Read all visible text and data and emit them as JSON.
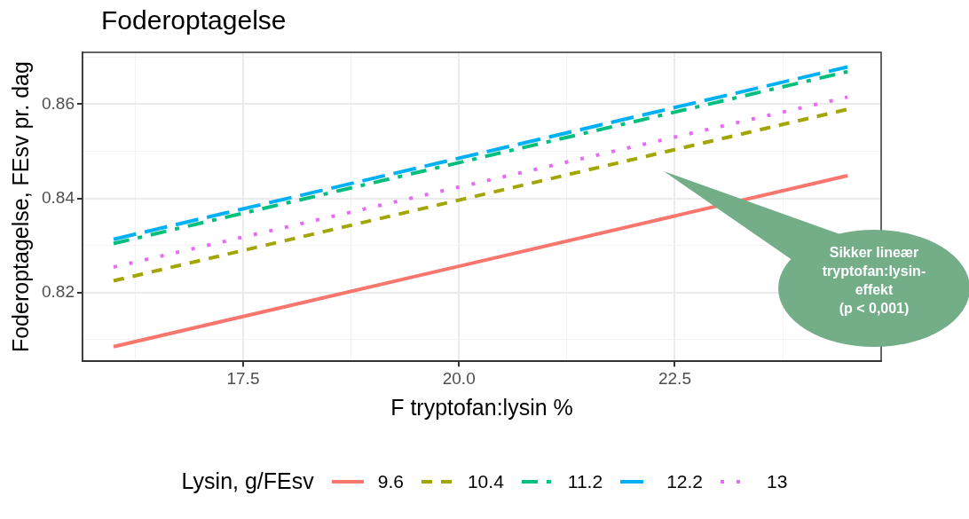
{
  "chart_data": {
    "type": "line",
    "title": "Foderoptagelse",
    "xlabel": "F tryptofan:lysin %",
    "ylabel": "Foderoptagelse, FEsv pr. dag",
    "legend_title": "Lysin, g/FEsv",
    "legend": "bottom",
    "grid": true,
    "marker": "none",
    "xlim": [
      15.64,
      24.89
    ],
    "xticks": [
      {
        "value": 16.25,
        "label": null
      },
      17.5,
      {
        "value": 18.75,
        "label": null
      },
      {
        "value": 20,
        "label": "20.0"
      },
      {
        "value": 21.25,
        "label": null
      },
      22.5,
      {
        "value": 23.75,
        "label": null
      }
    ],
    "ylim": [
      0.8054,
      0.871
    ],
    "yticks": [
      {
        "value": 0.81,
        "label": null
      },
      0.82,
      {
        "value": 0.83,
        "label": null
      },
      0.84,
      {
        "value": 0.85,
        "label": null
      },
      0.86,
      {
        "value": 0.87,
        "label": null
      }
    ],
    "x": [
      16,
      24.5
    ],
    "series": [
      {
        "name": "9.6",
        "color": "#f8766d",
        "line_style": "solid",
        "values": [
          0.8085,
          0.8448
        ]
      },
      {
        "name": "10.4",
        "color": "#a3a500",
        "line_style": "dashed",
        "values": [
          0.8225,
          0.8589
        ]
      },
      {
        "name": "11.2",
        "color": "#00bf7d",
        "line_style": "dashdot",
        "values": [
          0.8304,
          0.8669
        ]
      },
      {
        "name": "12.2",
        "color": "#00b0f6",
        "line_style": "longdash",
        "values": [
          0.8313,
          0.8679
        ]
      },
      {
        "name": "13",
        "color": "#e76bf3",
        "line_style": "dotted",
        "values": [
          0.8254,
          0.8615
        ]
      }
    ],
    "annotations": [
      "Sikker lineær\ntryptofan:lysin-\neffekt\n(p < 0,001)"
    ]
  }
}
